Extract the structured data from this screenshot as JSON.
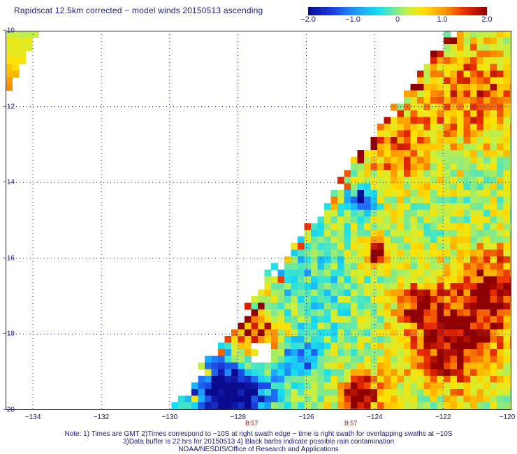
{
  "title": "Rapidscat 12.5km corrected − model winds 20150513 ascending",
  "colorbar": {
    "ticks": [
      "−2.0",
      "−1.0",
      "0",
      "1.0",
      "2.0"
    ],
    "range": [
      -2.0,
      2.0
    ],
    "colors": [
      "#0a0a8f",
      "#1b3fe0",
      "#1e90ff",
      "#17e0f0",
      "#6ee8a0",
      "#c8f040",
      "#ffe000",
      "#ff9a00",
      "#e82a00",
      "#8f0000"
    ]
  },
  "map": {
    "lon_range": [
      -134.8,
      -120
    ],
    "lat_range": [
      -20,
      -10
    ],
    "lat_labels": [
      "−10",
      "−12",
      "−14",
      "−16",
      "−18",
      "−20"
    ],
    "lat_values": [
      -10,
      -12,
      -14,
      -16,
      -18,
      -20
    ],
    "lon_labels": [
      "−134",
      "−132",
      "−130",
      "−128",
      "−126",
      "−124",
      "−122",
      "−120"
    ],
    "lon_values": [
      -134,
      -132,
      -130,
      -128,
      -126,
      -124,
      -122,
      -120
    ],
    "rev_labels": [
      {
        "text": "B:57",
        "lon": -127.6
      },
      {
        "text": "B:57",
        "lon": -124.7
      }
    ]
  },
  "notes": [
    "Note: 1) Times are GMT 2)Times correspond to −10S at right swath edge − time is right swath for overlapping swaths at −10S",
    "3)Data buffer is 22 hrs for 20150513 4) Black barbs indicate possible rain contamination",
    "NOAA/NESDIS/Office of Research and Applications"
  ]
}
